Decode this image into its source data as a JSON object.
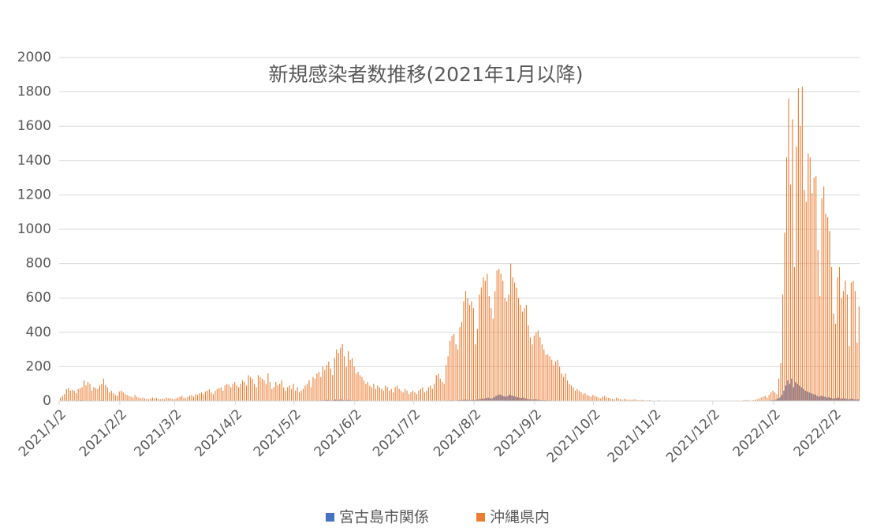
{
  "chart_data": {
    "type": "bar",
    "title": "新規感染者数推移(2021年1月以降)",
    "ylim": [
      0,
      2000
    ],
    "yticks": [
      0,
      200,
      400,
      600,
      800,
      1000,
      1200,
      1400,
      1600,
      1800,
      2000
    ],
    "grid": true,
    "legend": "bottom",
    "categories": [
      "2021/1/2",
      null,
      null,
      null,
      null,
      null,
      null,
      null,
      null,
      null,
      null,
      null,
      null,
      null,
      null,
      null,
      null,
      null,
      null,
      null,
      null,
      null,
      null,
      null,
      null,
      null,
      null,
      null,
      null,
      null,
      null,
      "2021/2/2",
      null,
      null,
      null,
      null,
      null,
      null,
      null,
      null,
      null,
      null,
      null,
      null,
      null,
      null,
      null,
      null,
      null,
      null,
      null,
      null,
      null,
      null,
      null,
      null,
      null,
      null,
      null,
      "2021/3/2",
      null,
      null,
      null,
      null,
      null,
      null,
      null,
      null,
      null,
      null,
      null,
      null,
      null,
      null,
      null,
      null,
      null,
      null,
      null,
      null,
      null,
      null,
      null,
      null,
      null,
      null,
      null,
      null,
      null,
      null,
      "2021/4/2",
      null,
      null,
      null,
      null,
      null,
      null,
      null,
      null,
      null,
      null,
      null,
      null,
      null,
      null,
      null,
      null,
      null,
      null,
      null,
      null,
      null,
      null,
      null,
      null,
      null,
      null,
      null,
      null,
      null,
      "2021/5/2",
      null,
      null,
      null,
      null,
      null,
      null,
      null,
      null,
      null,
      null,
      null,
      null,
      null,
      null,
      null,
      null,
      null,
      null,
      null,
      null,
      null,
      null,
      null,
      null,
      null,
      null,
      null,
      null,
      null,
      null,
      "2021/6/2",
      null,
      null,
      null,
      null,
      null,
      null,
      null,
      null,
      null,
      null,
      null,
      null,
      null,
      null,
      null,
      null,
      null,
      null,
      null,
      null,
      null,
      null,
      null,
      null,
      null,
      null,
      null,
      null,
      null,
      "2021/7/2",
      null,
      null,
      null,
      null,
      null,
      null,
      null,
      null,
      null,
      null,
      null,
      null,
      null,
      null,
      null,
      null,
      null,
      null,
      null,
      null,
      null,
      null,
      null,
      null,
      null,
      null,
      null,
      null,
      null,
      null,
      "2021/8/2",
      null,
      null,
      null,
      null,
      null,
      null,
      null,
      null,
      null,
      null,
      null,
      null,
      null,
      null,
      null,
      null,
      null,
      null,
      null,
      null,
      null,
      null,
      null,
      null,
      null,
      null,
      null,
      null,
      null,
      null,
      "2021/9/2",
      null,
      null,
      null,
      null,
      null,
      null,
      null,
      null,
      null,
      null,
      null,
      null,
      null,
      null,
      null,
      null,
      null,
      null,
      null,
      null,
      null,
      null,
      null,
      null,
      null,
      null,
      null,
      null,
      null,
      "2021/10/2",
      null,
      null,
      null,
      null,
      null,
      null,
      null,
      null,
      null,
      null,
      null,
      null,
      null,
      null,
      null,
      null,
      null,
      null,
      null,
      null,
      null,
      null,
      null,
      null,
      null,
      null,
      null,
      null,
      null,
      null,
      "2021/11/2",
      null,
      null,
      null,
      null,
      null,
      null,
      null,
      null,
      null,
      null,
      null,
      null,
      null,
      null,
      null,
      null,
      null,
      null,
      null,
      null,
      null,
      null,
      null,
      null,
      null,
      null,
      null,
      null,
      null,
      "2021/12/2",
      null,
      null,
      null,
      null,
      null,
      null,
      null,
      null,
      null,
      null,
      null,
      null,
      null,
      null,
      null,
      null,
      null,
      null,
      null,
      null,
      null,
      null,
      null,
      null,
      null,
      null,
      null,
      null,
      null,
      null,
      "2022/1/2",
      null,
      null,
      null,
      null,
      null,
      null,
      null,
      null,
      null,
      null,
      null,
      null,
      null,
      null,
      null,
      null,
      null,
      null,
      null,
      null,
      null,
      null,
      null,
      null,
      null,
      null,
      null,
      null,
      null,
      null,
      "2022/2/2",
      null,
      null,
      null,
      null,
      null,
      null,
      null,
      null,
      null,
      null,
      null,
      null
    ],
    "series": [
      {
        "name": "宮古島市関係",
        "color": "#4472c4",
        "values": [
          0,
          0,
          1,
          2,
          3,
          2,
          1,
          2,
          1,
          3,
          2,
          4,
          3,
          2,
          1,
          2,
          3,
          1,
          2,
          1,
          2,
          3,
          4,
          2,
          1,
          2,
          1,
          0,
          1,
          0,
          1,
          1,
          0,
          0,
          1,
          0,
          0,
          0,
          0,
          0,
          0,
          0,
          0,
          0,
          0,
          0,
          0,
          0,
          0,
          0,
          0,
          0,
          0,
          0,
          0,
          0,
          0,
          0,
          0,
          0,
          0,
          0,
          0,
          0,
          0,
          0,
          0,
          0,
          0,
          0,
          0,
          0,
          0,
          0,
          0,
          0,
          0,
          0,
          0,
          0,
          0,
          0,
          0,
          0,
          0,
          0,
          0,
          0,
          0,
          0,
          0,
          0,
          0,
          0,
          0,
          0,
          1,
          0,
          0,
          0,
          0,
          1,
          0,
          0,
          0,
          0,
          2,
          1,
          0,
          0,
          1,
          0,
          0,
          1,
          0,
          0,
          0,
          1,
          0,
          0,
          0,
          0,
          0,
          1,
          0,
          0,
          1,
          2,
          0,
          1,
          2,
          1,
          3,
          2,
          4,
          3,
          5,
          6,
          4,
          3,
          5,
          8,
          6,
          7,
          9,
          5,
          4,
          6,
          5,
          4,
          3,
          3,
          4,
          2,
          2,
          1,
          1,
          2,
          1,
          1,
          0,
          1,
          1,
          0,
          0,
          0,
          1,
          0,
          0,
          0,
          0,
          0,
          0,
          0,
          1,
          0,
          0,
          0,
          0,
          0,
          0,
          0,
          0,
          0,
          0,
          0,
          0,
          0,
          0,
          1,
          0,
          0,
          2,
          1,
          1,
          0,
          1,
          2,
          3,
          2,
          4,
          3,
          2,
          3,
          5,
          4,
          6,
          8,
          7,
          6,
          5,
          7,
          5,
          8,
          10,
          12,
          15,
          14,
          18,
          20,
          16,
          15,
          22,
          30,
          35,
          38,
          32,
          28,
          25,
          30,
          36,
          32,
          28,
          25,
          22,
          20,
          18,
          20,
          15,
          12,
          10,
          8,
          9,
          10,
          8,
          6,
          5,
          4,
          5,
          3,
          4,
          3,
          2,
          3,
          2,
          2,
          1,
          1,
          2,
          1,
          0,
          1,
          0,
          0,
          0,
          0,
          0,
          0,
          0,
          0,
          0,
          0,
          0,
          0,
          0,
          0,
          0,
          0,
          0,
          0,
          0,
          0,
          0,
          0,
          0,
          0,
          0,
          0,
          0,
          0,
          0,
          0,
          0,
          0,
          0,
          0,
          0,
          0,
          0,
          0,
          0,
          0,
          0,
          0,
          0,
          0,
          0,
          0,
          0,
          0,
          0,
          0,
          0,
          0,
          0,
          0,
          0,
          0,
          0,
          0,
          0,
          0,
          0,
          0,
          0,
          0,
          0,
          0,
          0,
          0,
          0,
          0,
          0,
          0,
          0,
          0,
          0,
          0,
          0,
          0,
          0,
          0,
          0,
          0,
          0,
          0,
          0,
          0,
          0,
          0,
          0,
          0,
          0,
          0,
          0,
          0,
          0,
          0,
          0,
          0,
          0,
          1,
          2,
          3,
          5,
          5,
          8,
          15,
          20,
          35,
          60,
          90,
          120,
          100,
          130,
          80,
          110,
          100,
          90,
          80,
          70,
          60,
          55,
          50,
          45,
          40,
          38,
          30,
          25,
          30,
          28,
          25,
          20,
          22,
          18,
          15,
          15,
          18,
          20,
          15,
          14,
          16,
          12,
          10,
          12,
          14,
          10,
          8,
          10
        ]
      },
      {
        "name": "沖縄県内",
        "color": "#ed7d31",
        "values": [
          20,
          30,
          40,
          70,
          75,
          60,
          65,
          60,
          45,
          70,
          75,
          80,
          120,
          90,
          110,
          100,
          60,
          80,
          75,
          70,
          90,
          100,
          130,
          95,
          80,
          50,
          60,
          45,
          35,
          30,
          55,
          60,
          50,
          40,
          35,
          30,
          25,
          20,
          35,
          25,
          20,
          15,
          20,
          15,
          12,
          10,
          15,
          20,
          15,
          18,
          12,
          10,
          15,
          10,
          20,
          15,
          18,
          12,
          10,
          15,
          20,
          25,
          30,
          20,
          15,
          25,
          30,
          35,
          25,
          40,
          35,
          45,
          50,
          40,
          55,
          60,
          70,
          50,
          40,
          60,
          70,
          75,
          80,
          60,
          90,
          100,
          95,
          80,
          100,
          110,
          90,
          80,
          100,
          120,
          110,
          90,
          150,
          140,
          130,
          100,
          80,
          150,
          140,
          130,
          120,
          100,
          160,
          110,
          70,
          80,
          110,
          90,
          100,
          120,
          80,
          60,
          80,
          90,
          70,
          100,
          60,
          80,
          50,
          60,
          70,
          90,
          100,
          120,
          80,
          140,
          130,
          160,
          170,
          140,
          200,
          180,
          210,
          230,
          190,
          150,
          250,
          300,
          280,
          310,
          330,
          260,
          200,
          290,
          240,
          250,
          200,
          160,
          170,
          150,
          140,
          120,
          100,
          110,
          90,
          80,
          100,
          70,
          90,
          80,
          70,
          60,
          90,
          80,
          60,
          70,
          50,
          80,
          90,
          70,
          60,
          50,
          70,
          60,
          40,
          50,
          60,
          50,
          40,
          60,
          70,
          80,
          50,
          60,
          80,
          90,
          70,
          100,
          150,
          160,
          130,
          110,
          100,
          210,
          260,
          350,
          380,
          390,
          330,
          300,
          430,
          460,
          580,
          640,
          600,
          560,
          580,
          540,
          330,
          420,
          620,
          660,
          720,
          700,
          740,
          610,
          540,
          480,
          640,
          760,
          770,
          740,
          700,
          600,
          580,
          620,
          800,
          720,
          690,
          660,
          600,
          560,
          520,
          540,
          560,
          440,
          370,
          330,
          380,
          400,
          410,
          370,
          330,
          300,
          270,
          270,
          260,
          240,
          210,
          230,
          240,
          200,
          160,
          140,
          160,
          120,
          100,
          90,
          80,
          60,
          70,
          60,
          50,
          40,
          45,
          35,
          30,
          25,
          35,
          30,
          25,
          20,
          15,
          25,
          30,
          20,
          18,
          15,
          12,
          10,
          20,
          15,
          10,
          8,
          12,
          10,
          5,
          8,
          6,
          10,
          8,
          5,
          4,
          6,
          5,
          3,
          4,
          5,
          3,
          2,
          2,
          3,
          4,
          2,
          1,
          3,
          2,
          1,
          2,
          0,
          1,
          2,
          1,
          0,
          1,
          2,
          1,
          0,
          1,
          0,
          1,
          2,
          0,
          1,
          1,
          0,
          1,
          2,
          0,
          1,
          1,
          0,
          2,
          1,
          0,
          1,
          3,
          2,
          1,
          0,
          2,
          1,
          3,
          2,
          1,
          4,
          5,
          6,
          3,
          2,
          5,
          8,
          10,
          15,
          20,
          25,
          30,
          20,
          35,
          50,
          60,
          50,
          40,
          130,
          220,
          620,
          980,
          1420,
          1760,
          1260,
          1640,
          780,
          1480,
          1820,
          1600,
          1830,
          1230,
          1160,
          1440,
          1420,
          1210,
          1300,
          1310,
          880,
          610,
          1180,
          1250,
          1090,
          1070,
          990,
          780,
          510,
          450,
          720,
          780,
          600,
          640,
          700,
          620,
          320,
          690,
          700,
          640,
          340,
          550
        ]
      }
    ]
  }
}
